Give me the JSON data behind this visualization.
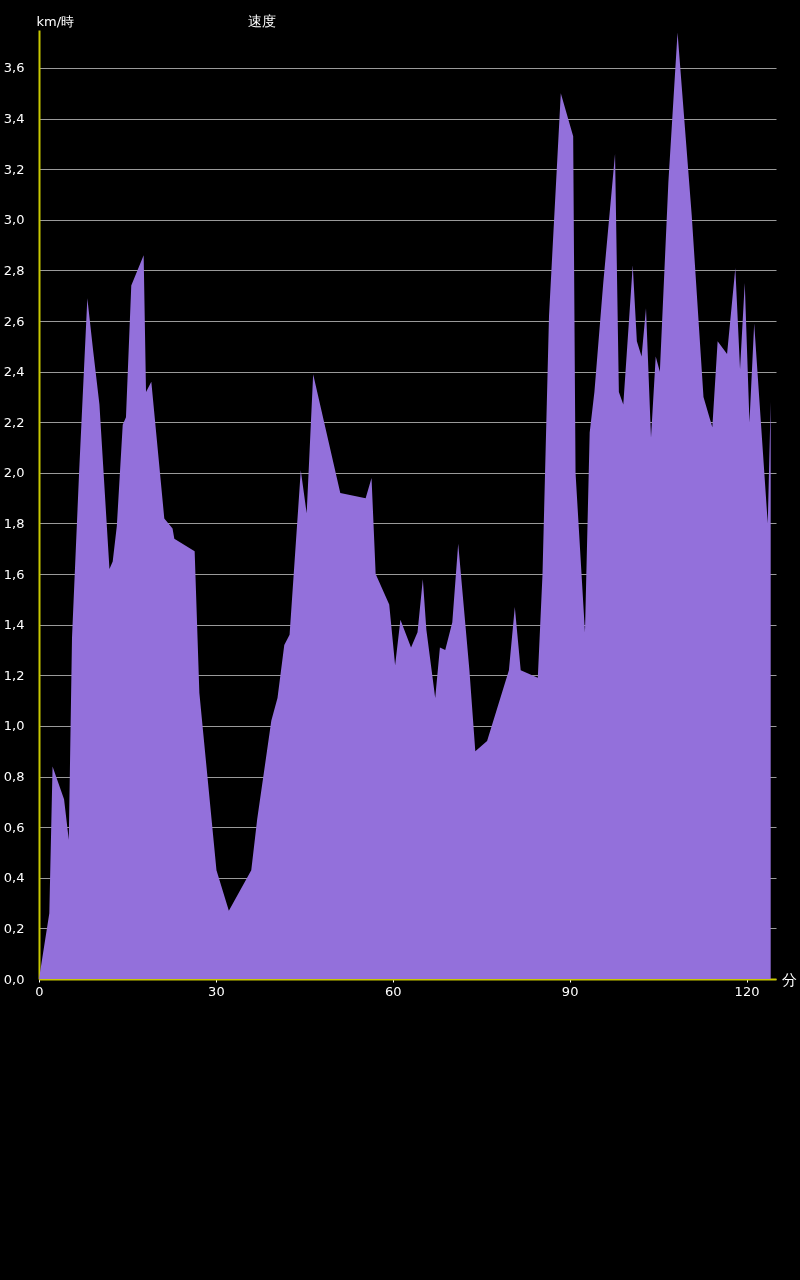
{
  "chart_data": {
    "type": "area",
    "title": "速度",
    "xlabel": "分",
    "ylabel": "km/時",
    "x": [
      0,
      1.75,
      2.3,
      4.25,
      5.05,
      5.6,
      6.8,
      8.2,
      9.2,
      10.25,
      11.95,
      12.5,
      13.2,
      14.2,
      14.75,
      15.65,
      17.75,
      18.15,
      19.05,
      21.25,
      22.65,
      22.95,
      26.4,
      27.2,
      30.1,
      32.2,
      36.0,
      37.0,
      39.4,
      40.45,
      41.6,
      42.5,
      44.4,
      45.4,
      46.5,
      51.1,
      55.4,
      56.4,
      57.1,
      59.4,
      60.4,
      61.3,
      63.1,
      64.2,
      65.1,
      65.7,
      67.2,
      68.0,
      68.9,
      70.1,
      71.1,
      73.0,
      74.0,
      76.0,
      79.7,
      80.7,
      81.7,
      84.6,
      85.4,
      86.5,
      88.5,
      90.6,
      91.0,
      92.6,
      93.4,
      94.2,
      95.7,
      97.7,
      98.35,
      99.1,
      100.7,
      101.4,
      102.2,
      102.95,
      103.8,
      104.6,
      105.3,
      106.75,
      108.3,
      110.7,
      112.7,
      114.2,
      115.1,
      116.7,
      118.1,
      118.9,
      119.7,
      120.5,
      121.3,
      123.6,
      124.1
    ],
    "series": [
      {
        "color": "#9370db",
        "values": [
          0,
          0.26,
          0.84,
          0.71,
          0.55,
          1.35,
          2.0,
          2.69,
          2.48,
          2.27,
          1.62,
          1.65,
          1.79,
          2.19,
          2.22,
          2.74,
          2.86,
          2.32,
          2.36,
          1.82,
          1.78,
          1.74,
          1.69,
          1.13,
          0.43,
          0.27,
          0.43,
          0.63,
          1.02,
          1.11,
          1.32,
          1.36,
          2.01,
          1.84,
          2.39,
          1.92,
          1.9,
          1.98,
          1.6,
          1.48,
          1.24,
          1.42,
          1.31,
          1.37,
          1.58,
          1.38,
          1.11,
          1.31,
          1.3,
          1.41,
          1.72,
          1.22,
          0.9,
          0.94,
          1.22,
          1.47,
          1.22,
          1.19,
          1.6,
          2.62,
          3.5,
          3.33,
          2.0,
          1.37,
          2.16,
          2.32,
          2.75,
          3.26,
          2.32,
          2.27,
          2.82,
          2.52,
          2.46,
          2.65,
          2.14,
          2.46,
          2.4,
          3.15,
          3.74,
          3.02,
          2.3,
          2.18,
          2.52,
          2.47,
          2.81,
          2.41,
          2.75,
          2.2,
          2.59,
          1.8,
          2.28
        ]
      }
    ],
    "xlim": [
      0,
      125
    ],
    "xticks": [
      0,
      30,
      60,
      90,
      120
    ],
    "ylim": [
      0,
      3.75
    ],
    "yticks": [
      {
        "value": 0,
        "label": "0,0"
      },
      {
        "value": 0.2,
        "label": "0,2"
      },
      {
        "value": 0.4,
        "label": "0,4"
      },
      {
        "value": 0.6,
        "label": "0,6"
      },
      {
        "value": 0.8,
        "label": "0,8"
      },
      {
        "value": 1.0,
        "label": "1,0"
      },
      {
        "value": 1.2,
        "label": "1,2"
      },
      {
        "value": 1.4,
        "label": "1,4"
      },
      {
        "value": 1.6,
        "label": "1,6"
      },
      {
        "value": 1.8,
        "label": "1,8"
      },
      {
        "value": 2.0,
        "label": "2,0"
      },
      {
        "value": 2.2,
        "label": "2,2"
      },
      {
        "value": 2.4,
        "label": "2,4"
      },
      {
        "value": 2.6,
        "label": "2,6"
      },
      {
        "value": 2.8,
        "label": "2,8"
      },
      {
        "value": 3.0,
        "label": "3,0"
      },
      {
        "value": 3.2,
        "label": "3,2"
      },
      {
        "value": 3.4,
        "label": "3,4"
      },
      {
        "value": 3.6,
        "label": "3,6"
      }
    ],
    "grid": "y"
  }
}
